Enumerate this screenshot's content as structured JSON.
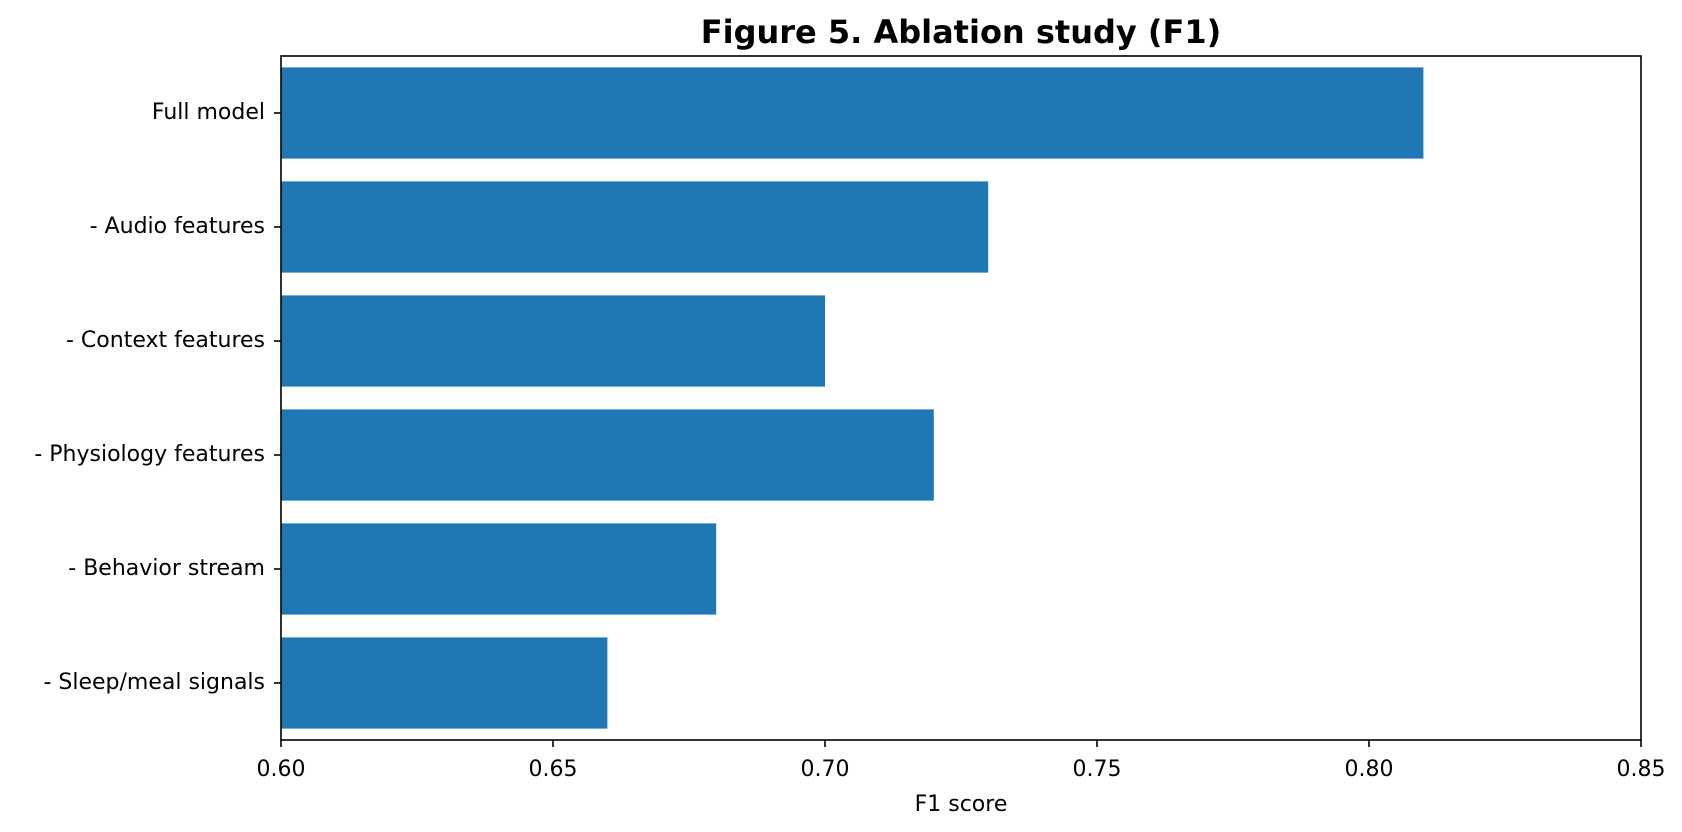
{
  "chart_data": {
    "type": "bar",
    "orientation": "horizontal",
    "title": "Figure 5. Ablation study (F1)",
    "xlabel": "F1 score",
    "ylabel": "",
    "xlim": [
      0.6,
      0.85
    ],
    "xticks": [
      0.6,
      0.65,
      0.7,
      0.75,
      0.8,
      0.85
    ],
    "xtick_labels": [
      "0.60",
      "0.65",
      "0.70",
      "0.75",
      "0.80",
      "0.85"
    ],
    "categories": [
      "Full model",
      "- Audio features",
      "- Context features",
      "- Physiology features",
      "- Behavior stream",
      "- Sleep/meal signals"
    ],
    "values": [
      0.81,
      0.73,
      0.7,
      0.72,
      0.68,
      0.66
    ],
    "bar_color": "#1f77b4",
    "grid": false,
    "legend": "none"
  }
}
